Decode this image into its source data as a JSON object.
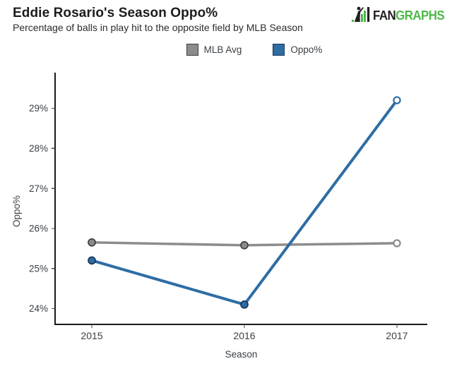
{
  "header": {
    "title": "Eddie Rosario's Season Oppo%",
    "subtitle": "Percentage of balls in play hit to the opposite field by MLB Season"
  },
  "logo": {
    "text_primary": "FAN",
    "text_secondary": "GRAPHS",
    "green": "#4db848",
    "black": "#231f20"
  },
  "chart_data": {
    "type": "line",
    "title": "Eddie Rosario's Season Oppo%",
    "subtitle": "Percentage of balls in play hit to the opposite field by MLB Season",
    "xlabel": "Season",
    "ylabel": "Oppo%",
    "categories": [
      "2015",
      "2016",
      "2017"
    ],
    "series": [
      {
        "name": "MLB Avg",
        "color": "#8c8c8c",
        "edge_color": "#3f3f3f",
        "values": [
          25.65,
          25.58,
          25.63
        ],
        "end_marker": "open"
      },
      {
        "name": "Oppo%",
        "color": "#2e6da4",
        "edge_color": "#17375e",
        "values": [
          25.2,
          24.1,
          29.2
        ],
        "end_marker": "open"
      }
    ],
    "yticks": [
      "24%",
      "25%",
      "26%",
      "27%",
      "28%",
      "29%"
    ],
    "ytick_values": [
      24,
      25,
      26,
      27,
      28,
      29
    ],
    "ylim": [
      23.6,
      29.9
    ],
    "grid": false,
    "legend_position": "top-center",
    "axis_color": "#1a1a1a",
    "text_color": "#3a3f44"
  }
}
